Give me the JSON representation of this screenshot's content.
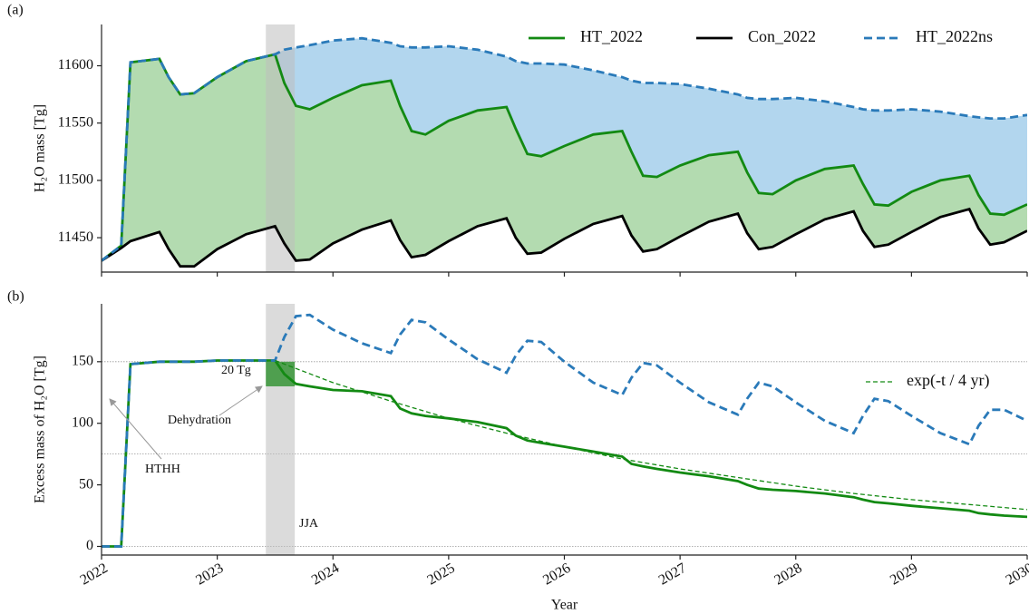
{
  "chart_data": [
    {
      "type": "line",
      "panel_label": "(a)",
      "ylabel": "H₂O mass [Tg]",
      "xlim": [
        2022,
        2030
      ],
      "xticks": [
        2022,
        2023,
        2024,
        2025,
        2026,
        2027,
        2028,
        2029,
        2030
      ],
      "show_xtick_labels": false,
      "ylim": [
        11420,
        11636
      ],
      "yticks": [
        11450,
        11500,
        11550,
        11600
      ],
      "span": [
        2023.42,
        2023.67
      ],
      "span_color": "#bdbdbd",
      "fills": [
        {
          "between": [
            1,
            0
          ],
          "color": "#b3dbb0"
        },
        {
          "between": [
            2,
            0
          ],
          "color": "#b2d6ee"
        }
      ],
      "legend": "top right",
      "x": [
        2022.0,
        2022.17,
        2022.25,
        2022.5,
        2022.58,
        2022.68,
        2022.8,
        2023.0,
        2023.25,
        2023.5,
        2023.58,
        2023.68,
        2023.8,
        2024.0,
        2024.25,
        2024.5,
        2024.58,
        2024.68,
        2024.8,
        2025.0,
        2025.25,
        2025.5,
        2025.58,
        2025.68,
        2025.8,
        2026.0,
        2026.25,
        2026.5,
        2026.58,
        2026.68,
        2026.8,
        2027.0,
        2027.25,
        2027.5,
        2027.58,
        2027.68,
        2027.8,
        2028.0,
        2028.25,
        2028.5,
        2028.58,
        2028.68,
        2028.8,
        2029.0,
        2029.25,
        2029.5,
        2029.58,
        2029.68,
        2029.8,
        2030.0
      ],
      "series": [
        {
          "name": "HT_2022",
          "color": "#138a13",
          "dash": false,
          "values": [
            11430,
            11443,
            11603,
            11606,
            11590,
            11575,
            11576,
            11590,
            11604,
            11610,
            11585,
            11565,
            11562,
            11572,
            11583,
            11587,
            11565,
            11543,
            11540,
            11552,
            11561,
            11564,
            11545,
            11523,
            11521,
            11530,
            11540,
            11543,
            11525,
            11504,
            11503,
            11513,
            11522,
            11525,
            11507,
            11489,
            11488,
            11500,
            11510,
            11513,
            11497,
            11479,
            11478,
            11490,
            11500,
            11504,
            11487,
            11471,
            11470,
            11479
          ]
        },
        {
          "name": "Con_2022",
          "color": "#000000",
          "dash": false,
          "values": [
            11430,
            11441,
            11447,
            11455,
            11440,
            11425,
            11425,
            11440,
            11453,
            11460,
            11445,
            11430,
            11431,
            11445,
            11457,
            11465,
            11448,
            11433,
            11435,
            11447,
            11460,
            11467,
            11450,
            11436,
            11437,
            11449,
            11462,
            11469,
            11452,
            11438,
            11440,
            11451,
            11464,
            11471,
            11454,
            11440,
            11442,
            11453,
            11466,
            11473,
            11456,
            11442,
            11444,
            11455,
            11468,
            11475,
            11458,
            11444,
            11446,
            11456
          ]
        },
        {
          "name": "HT_2022ns",
          "color": "#2a7ab9",
          "dash": true,
          "values": [
            11430,
            11443,
            11603,
            11606,
            11590,
            11575,
            11576,
            11590,
            11604,
            11610,
            11614,
            11616,
            11618,
            11622,
            11624,
            11620,
            11617,
            11616,
            11616,
            11617,
            11614,
            11608,
            11604,
            11602,
            11602,
            11601,
            11596,
            11590,
            11587,
            11585,
            11585,
            11584,
            11580,
            11575,
            11572,
            11571,
            11571,
            11572,
            11569,
            11564,
            11562,
            11561,
            11561,
            11562,
            11560,
            11556,
            11555,
            11554,
            11554,
            11557
          ]
        }
      ]
    },
    {
      "type": "line",
      "panel_label": "(b)",
      "ylabel": "Excess mass of H₂O [Tg]",
      "xlabel": "Year",
      "xlim": [
        2022,
        2030
      ],
      "xticks": [
        2022,
        2023,
        2024,
        2025,
        2026,
        2027,
        2028,
        2029,
        2030
      ],
      "show_xtick_labels": true,
      "ylim": [
        -7,
        197
      ],
      "yticks": [
        0,
        50,
        100,
        150
      ],
      "hlines": [
        0,
        75,
        150
      ],
      "span": [
        2023.42,
        2023.67
      ],
      "span_color": "#bdbdbd",
      "box": {
        "x": [
          2023.42,
          2023.67
        ],
        "y": [
          130,
          150
        ],
        "color": "#4f9f4f"
      },
      "annotations": [
        "20 Tg",
        "Dehydration",
        "HTHH",
        "JJA"
      ],
      "legend": "right",
      "x": [
        2022.0,
        2022.17,
        2022.25,
        2022.5,
        2022.58,
        2022.68,
        2022.8,
        2023.0,
        2023.25,
        2023.5,
        2023.58,
        2023.68,
        2023.8,
        2024.0,
        2024.25,
        2024.5,
        2024.58,
        2024.68,
        2024.8,
        2025.0,
        2025.25,
        2025.5,
        2025.58,
        2025.68,
        2025.8,
        2026.0,
        2026.25,
        2026.5,
        2026.58,
        2026.68,
        2026.8,
        2027.0,
        2027.25,
        2027.5,
        2027.58,
        2027.68,
        2027.8,
        2028.0,
        2028.25,
        2028.5,
        2028.58,
        2028.68,
        2028.8,
        2029.0,
        2029.25,
        2029.5,
        2029.58,
        2029.68,
        2029.8,
        2030.0
      ],
      "series": [
        {
          "color": "#138a13",
          "dash": false,
          "values": [
            0,
            0,
            148,
            150,
            150,
            150,
            150,
            151,
            151,
            151,
            140,
            132,
            130,
            127,
            126,
            122,
            112,
            108,
            106,
            104,
            101,
            96,
            90,
            86,
            84,
            81,
            77,
            73,
            67,
            65,
            63,
            60,
            57,
            53,
            50,
            47,
            46,
            45,
            43,
            40,
            38,
            36,
            35,
            33,
            31,
            29,
            27,
            26,
            25,
            24
          ]
        },
        {
          "color": "#2a7ab9",
          "dash": true,
          "values": [
            0,
            0,
            148,
            150,
            150,
            150,
            150,
            151,
            151,
            151,
            170,
            187,
            188,
            176,
            165,
            157,
            172,
            184,
            182,
            168,
            152,
            141,
            155,
            167,
            166,
            150,
            133,
            123,
            137,
            149,
            147,
            133,
            117,
            107,
            120,
            133,
            130,
            117,
            102,
            92,
            106,
            120,
            118,
            106,
            92,
            83,
            98,
            111,
            111,
            102
          ]
        },
        {
          "name": "exp(-t / 4 yr)",
          "color": "#138a13",
          "dash": true,
          "thin": true,
          "x": [
            2023.5,
            2024.0,
            2024.5,
            2025.0,
            2025.5,
            2026.0,
            2026.5,
            2027.0,
            2027.5,
            2028.0,
            2028.5,
            2029.0,
            2029.5,
            2030.0
          ],
          "values": [
            151,
            133,
            118,
            104,
            92,
            81,
            71,
            63,
            56,
            49,
            43,
            38,
            34,
            30
          ]
        }
      ]
    }
  ]
}
